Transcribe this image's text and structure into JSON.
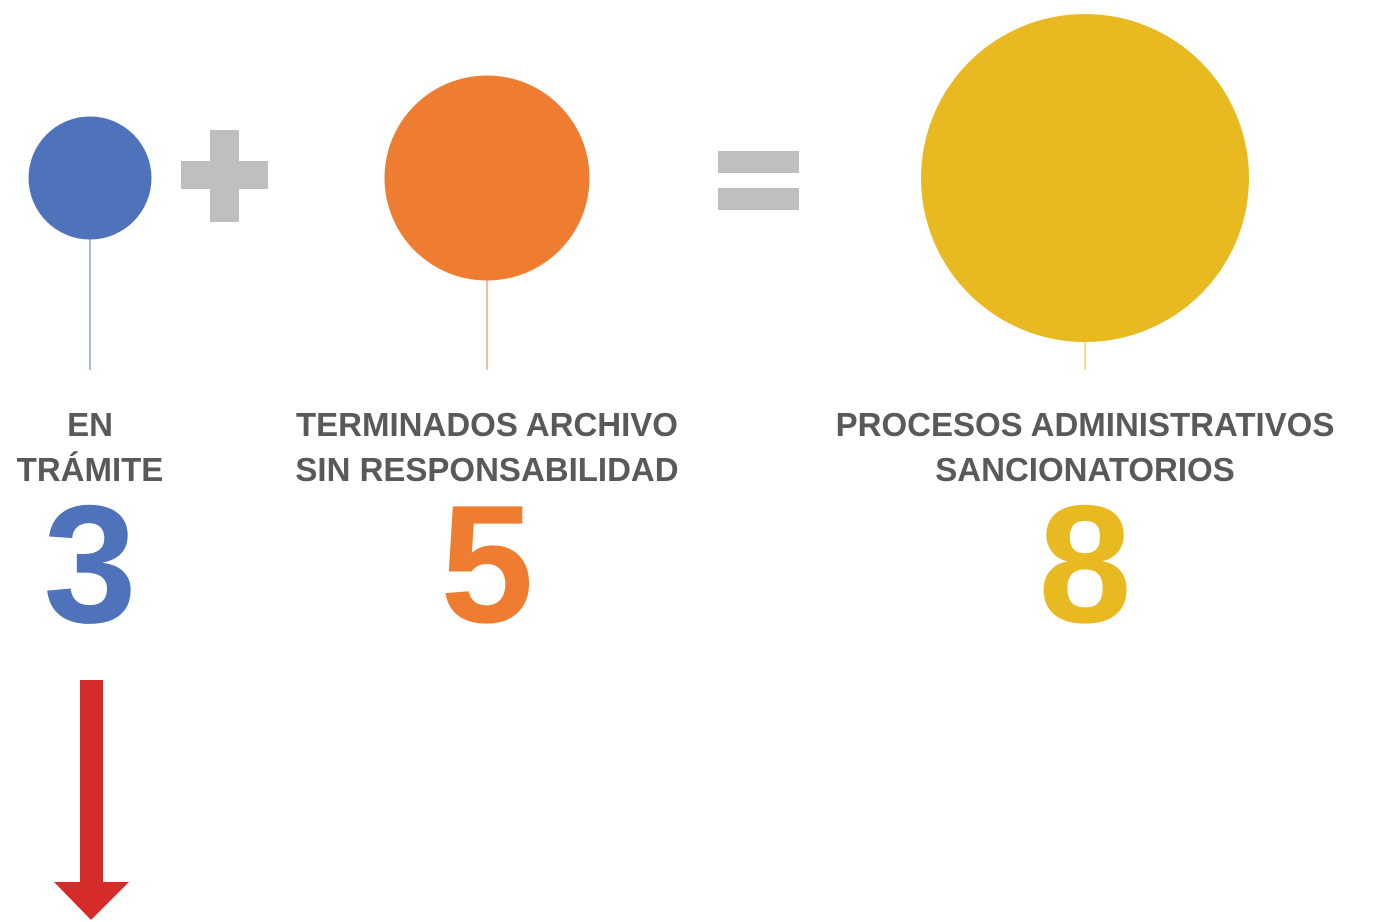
{
  "items": [
    {
      "label": [
        "EN",
        "TRÁMITE"
      ],
      "value": 3,
      "color": "#4e73ba"
    },
    {
      "label": [
        "TERMINADOS ARCHIVO",
        "SIN RESPONSABILIDAD"
      ],
      "value": 5,
      "color": "#ee7d31"
    },
    {
      "label": [
        "PROCESOS ADMINISTRATIVOS",
        "SANCIONATORIOS"
      ],
      "value": 8,
      "color": "#e8b920"
    }
  ]
}
